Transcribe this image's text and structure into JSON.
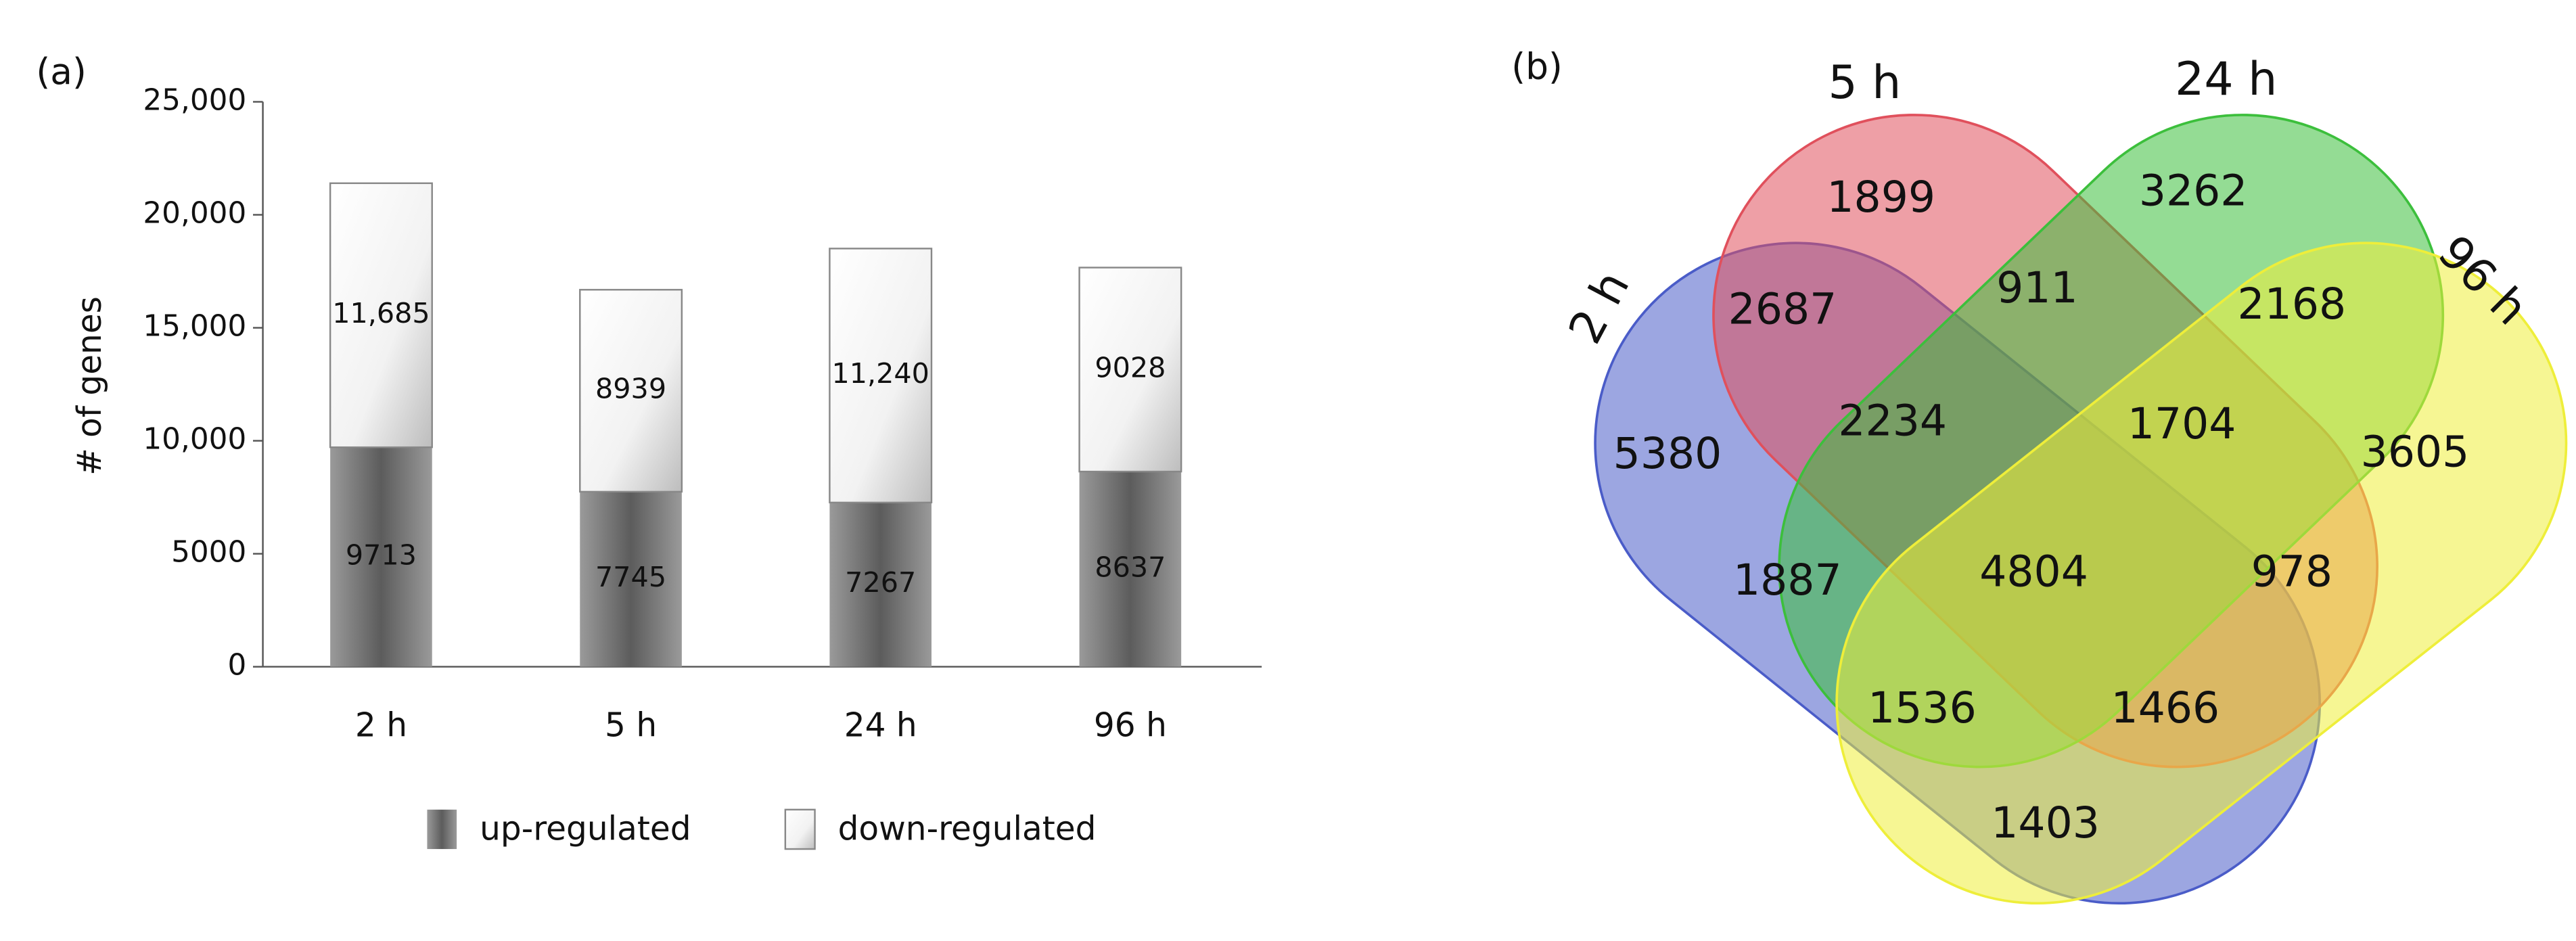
{
  "chart_data": [
    {
      "type": "stacked_bar",
      "panel_label": "(a)",
      "y_label": "# of genes",
      "categories": [
        "2 h",
        "5 h",
        "24 h",
        "96 h"
      ],
      "series": [
        {
          "name": "up-regulated",
          "color": "#6e6e6e",
          "values": [
            9713,
            7745,
            7267,
            8637
          ]
        },
        {
          "name": "down-regulated",
          "color": "#f4f4f4",
          "values": [
            11685,
            8939,
            11240,
            9028
          ],
          "value_labels": [
            "11,685",
            "8939",
            "11,240",
            "9028"
          ]
        }
      ],
      "ylim": [
        0,
        25000
      ],
      "yticks": [
        0,
        5000,
        {
          "value": 10000,
          "label": "10,000"
        },
        {
          "value": 15000,
          "label": "15,000"
        },
        {
          "value": 20000,
          "label": "20,000"
        },
        {
          "value": 25000,
          "label": "25,000"
        }
      ],
      "legend": "bottom"
    },
    {
      "type": "venn",
      "panel_label": "(b)",
      "sets": [
        {
          "name": "2 h",
          "color": "#4a5cc8"
        },
        {
          "name": "5 h",
          "color": "#e0505c"
        },
        {
          "name": "24 h",
          "color": "#3cbf3c"
        },
        {
          "name": "96 h",
          "color": "#eeee3a"
        }
      ],
      "values": [
        5380,
        1899,
        3262,
        3605,
        2687,
        911,
        2168,
        2234,
        1704,
        1887,
        4804,
        978,
        1536,
        1466,
        1403
      ]
    }
  ]
}
